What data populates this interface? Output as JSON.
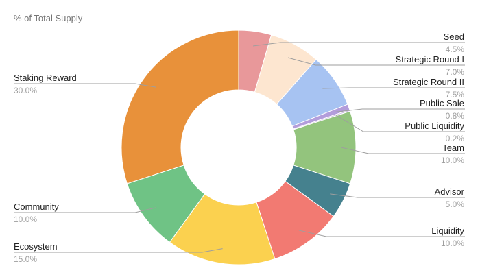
{
  "chart_data": {
    "type": "pie",
    "variant": "donut",
    "title": "% of Total Supply",
    "slices": [
      {
        "label": "Seed",
        "value": 4.5,
        "value_text": "4.5%",
        "color": "#e8989a"
      },
      {
        "label": "Strategic Round I",
        "value": 7.0,
        "value_text": "7.0%",
        "color": "#fde6d0"
      },
      {
        "label": "Strategic Round II",
        "value": 7.5,
        "value_text": "7.5%",
        "color": "#a7c3f2"
      },
      {
        "label": "Public Sale",
        "value": 0.8,
        "value_text": "0.8%",
        "color": "#b39ddb"
      },
      {
        "label": "Public Liquidity",
        "value": 0.2,
        "value_text": "0.2%",
        "color": "#c9b8e0"
      },
      {
        "label": "Team",
        "value": 10.0,
        "value_text": "10.0%",
        "color": "#93c47d"
      },
      {
        "label": "Advisor",
        "value": 5.0,
        "value_text": "5.0%",
        "color": "#45818e"
      },
      {
        "label": "Liquidity",
        "value": 10.0,
        "value_text": "10.0%",
        "color": "#f27a72"
      },
      {
        "label": "Ecosystem",
        "value": 15.0,
        "value_text": "15.0%",
        "color": "#fbd14f"
      },
      {
        "label": "Community",
        "value": 10.0,
        "value_text": "10.0%",
        "color": "#6fc385"
      },
      {
        "label": "Staking Reward",
        "value": 30.0,
        "value_text": "30.0%",
        "color": "#e8913a"
      }
    ],
    "legend": "none",
    "labels": "outside with leader lines"
  }
}
